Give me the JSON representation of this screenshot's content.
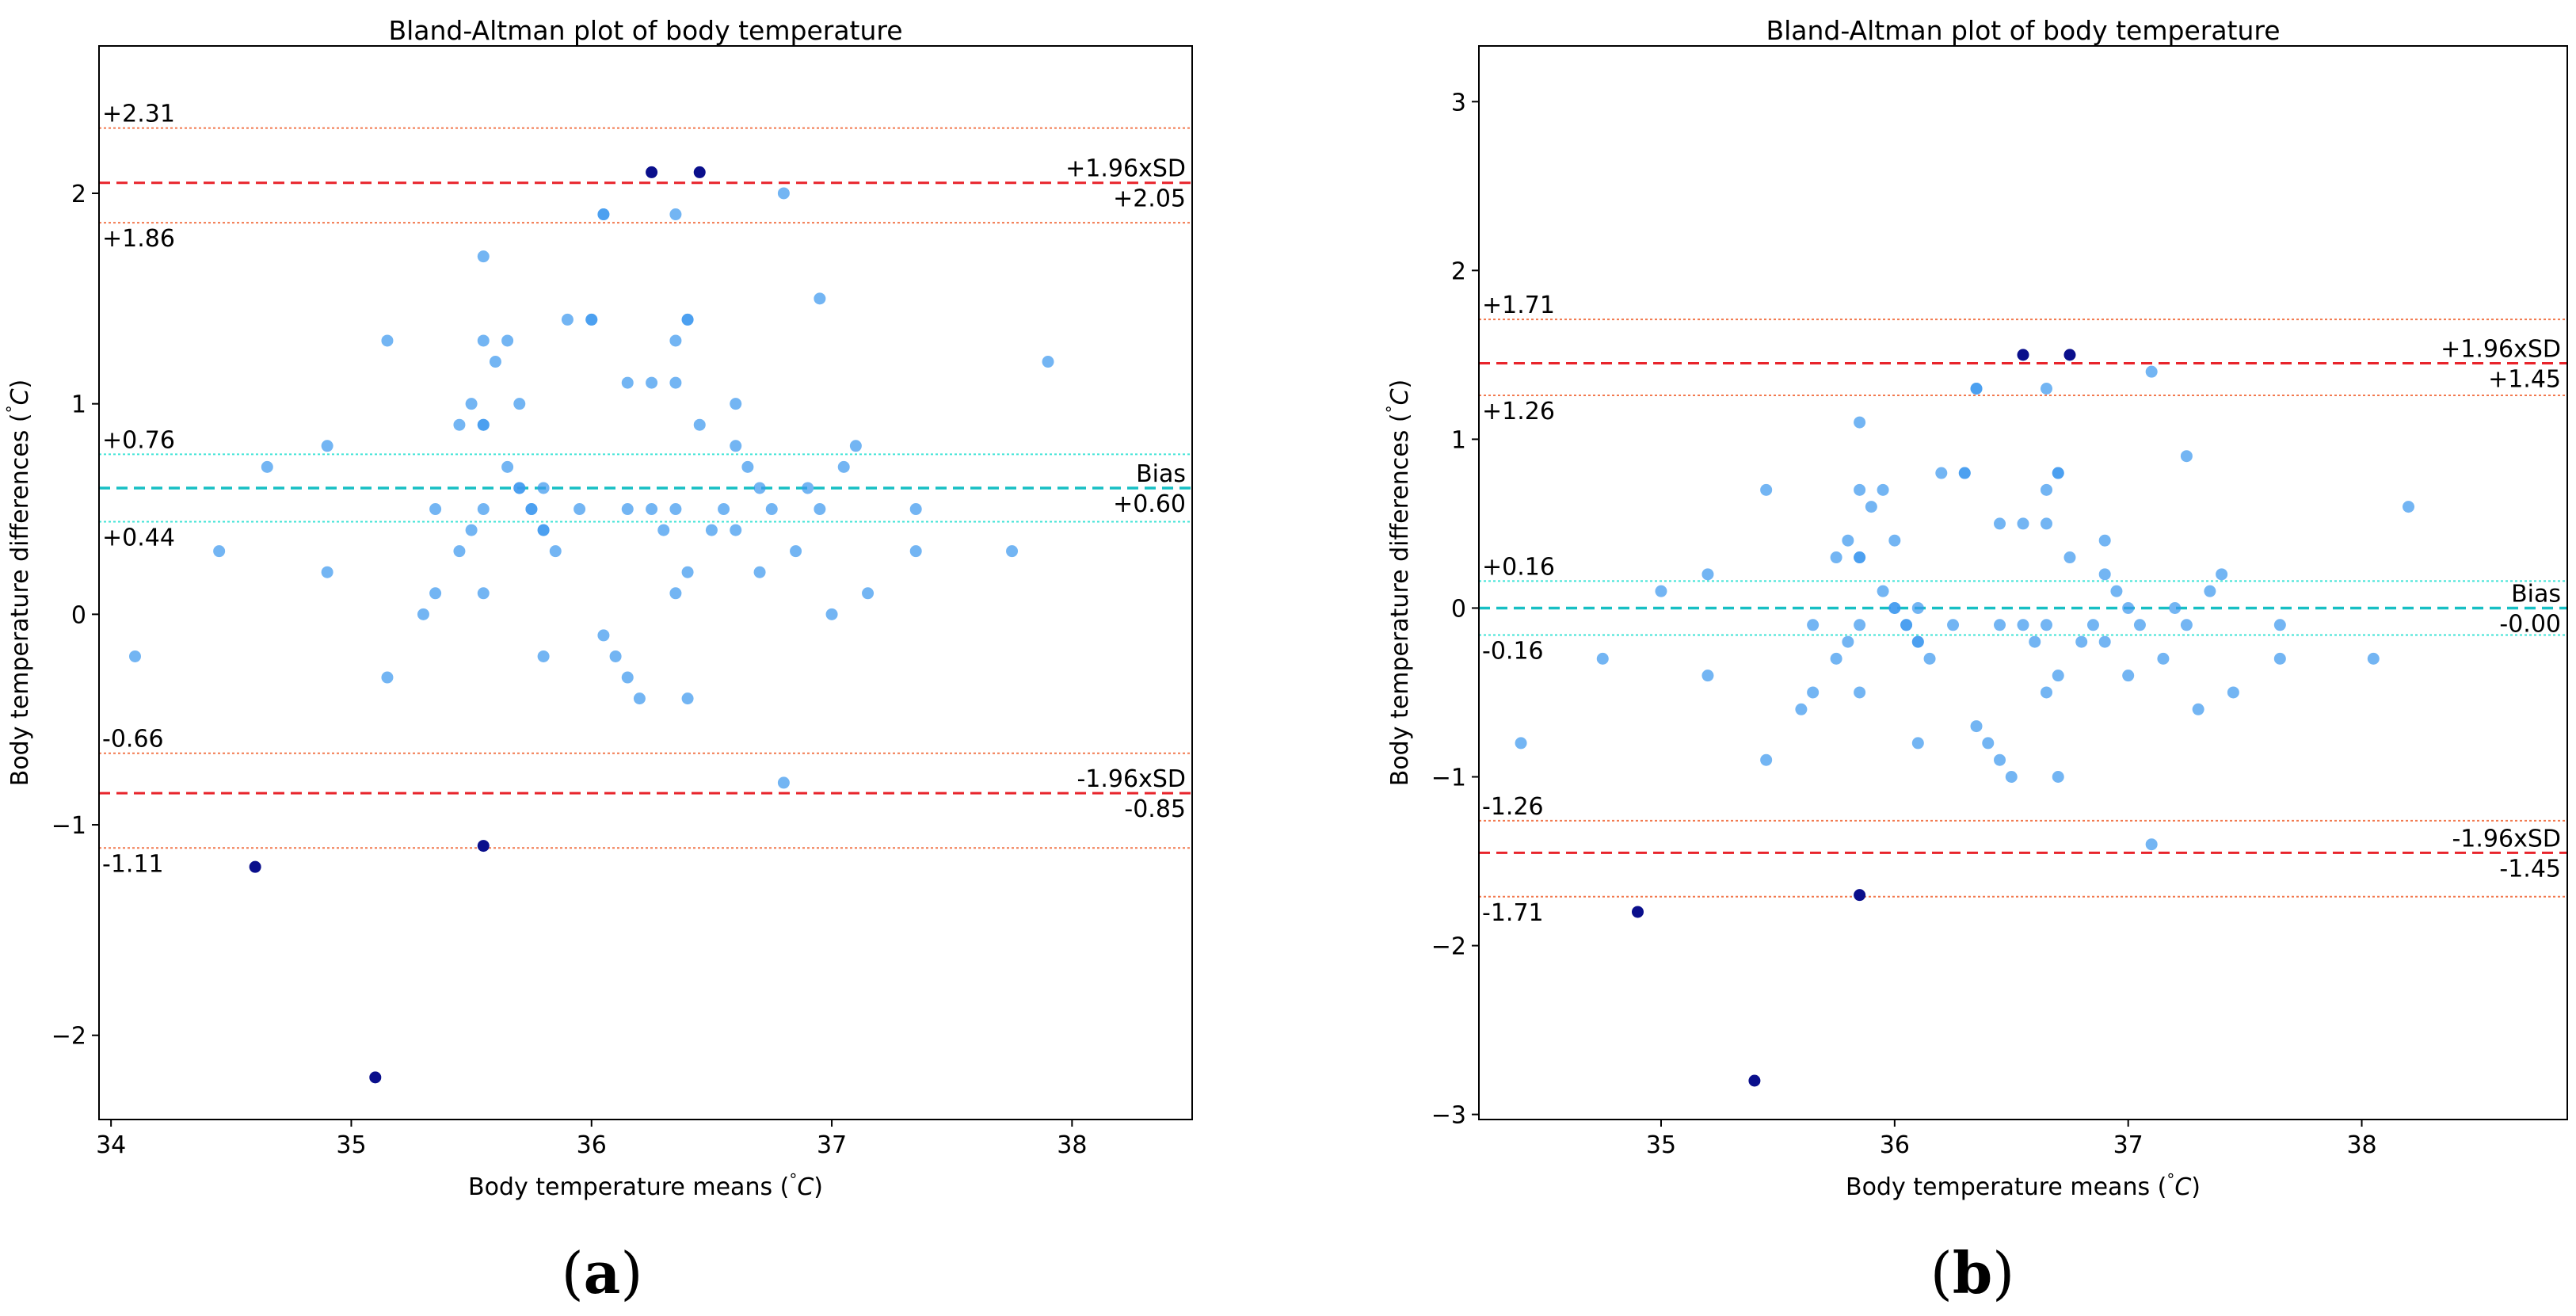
{
  "chart_data": [
    {
      "type": "scatter",
      "title": "Bland-Altman plot of body temperature",
      "xlabel": "Body temperature means (°C)",
      "ylabel": "Body temperature differences (°C)",
      "xlabel_parts": [
        "Body temperature means (",
        "°",
        "C",
        ")"
      ],
      "ylabel_parts": [
        "Body temperature differences (",
        "°",
        "C",
        ")"
      ],
      "xlim": [
        33.95,
        38.5
      ],
      "ylim": [
        -2.4,
        2.7
      ],
      "xticks": [
        34,
        35,
        36,
        37,
        38
      ],
      "yticks": [
        -2,
        -1,
        0,
        1,
        2
      ],
      "xtick_labels": [
        "34",
        "35",
        "36",
        "37",
        "38"
      ],
      "ytick_labels": [
        "−2",
        "−1",
        "0",
        "1",
        "2"
      ],
      "panel_label": {
        "open": "(",
        "letter": "a",
        "close": ")"
      },
      "reference_lines": [
        {
          "y": 2.31,
          "kind": "ci",
          "label": "+2.31",
          "label_side": "left-above"
        },
        {
          "y": 2.05,
          "kind": "loa",
          "label": "+1.96xSD",
          "label_side": "right-above"
        },
        {
          "y": 1.86,
          "kind": "ci",
          "label": "+1.86",
          "label_side": "left-below"
        },
        {
          "y": 0.76,
          "kind": "bias_ci",
          "label": "+0.76",
          "label_side": "left-above"
        },
        {
          "y": 0.6,
          "kind": "bias",
          "label": "Bias",
          "label_side": "right-above"
        },
        {
          "y": 0.44,
          "kind": "bias_ci",
          "label": "+0.44",
          "label_side": "left-below"
        },
        {
          "y": -0.66,
          "kind": "ci",
          "label": "-0.66",
          "label_side": "left-above"
        },
        {
          "y": -0.85,
          "kind": "loa",
          "label": "-1.96xSD",
          "label_side": "right-above"
        },
        {
          "y": -1.11,
          "kind": "ci",
          "label": "-1.11",
          "label_side": "left-below"
        }
      ],
      "value_labels": [
        {
          "y": 2.05,
          "label": "+2.05"
        },
        {
          "y": 0.6,
          "label": "+0.60"
        },
        {
          "y": -0.85,
          "label": "-0.85"
        }
      ],
      "points": [
        [
          34.1,
          -0.2
        ],
        [
          34.45,
          0.3
        ],
        [
          34.65,
          0.7
        ],
        [
          34.9,
          0.8
        ],
        [
          34.9,
          0.2
        ],
        [
          35.15,
          1.3
        ],
        [
          35.15,
          -0.3
        ],
        [
          35.3,
          0.0
        ],
        [
          35.35,
          0.5
        ],
        [
          35.35,
          0.1
        ],
        [
          35.45,
          0.9
        ],
        [
          35.45,
          0.3
        ],
        [
          35.5,
          1.0
        ],
        [
          35.5,
          0.4
        ],
        [
          35.55,
          1.7
        ],
        [
          35.55,
          1.3
        ],
        [
          35.55,
          0.9
        ],
        [
          35.55,
          0.9
        ],
        [
          35.55,
          0.5
        ],
        [
          35.55,
          0.1
        ],
        [
          35.6,
          1.2
        ],
        [
          35.65,
          1.3
        ],
        [
          35.65,
          0.7
        ],
        [
          35.7,
          1.0
        ],
        [
          35.7,
          0.6
        ],
        [
          35.7,
          0.6
        ],
        [
          35.75,
          0.5
        ],
        [
          35.75,
          0.5
        ],
        [
          35.8,
          0.6
        ],
        [
          35.8,
          0.4
        ],
        [
          35.8,
          0.4
        ],
        [
          35.8,
          -0.2
        ],
        [
          35.85,
          0.3
        ],
        [
          35.9,
          1.4
        ],
        [
          35.95,
          0.5
        ],
        [
          36.0,
          1.4
        ],
        [
          36.0,
          1.4
        ],
        [
          36.05,
          1.9
        ],
        [
          36.05,
          1.9
        ],
        [
          36.05,
          -0.1
        ],
        [
          36.1,
          -0.2
        ],
        [
          36.15,
          1.1
        ],
        [
          36.15,
          0.5
        ],
        [
          36.15,
          -0.3
        ],
        [
          36.2,
          -0.4
        ],
        [
          36.25,
          1.1
        ],
        [
          36.25,
          0.5
        ],
        [
          36.3,
          0.4
        ],
        [
          36.35,
          1.9
        ],
        [
          36.35,
          1.3
        ],
        [
          36.35,
          1.1
        ],
        [
          36.35,
          0.5
        ],
        [
          36.35,
          0.1
        ],
        [
          36.4,
          1.4
        ],
        [
          36.4,
          1.4
        ],
        [
          36.4,
          0.2
        ],
        [
          36.4,
          -0.4
        ],
        [
          36.45,
          0.9
        ],
        [
          36.5,
          0.4
        ],
        [
          36.55,
          0.5
        ],
        [
          36.6,
          1.0
        ],
        [
          36.6,
          0.8
        ],
        [
          36.6,
          0.4
        ],
        [
          36.65,
          0.7
        ],
        [
          36.7,
          0.6
        ],
        [
          36.7,
          0.2
        ],
        [
          36.75,
          0.5
        ],
        [
          36.8,
          2.0
        ],
        [
          36.8,
          -0.8
        ],
        [
          36.85,
          0.3
        ],
        [
          36.9,
          0.6
        ],
        [
          36.95,
          1.5
        ],
        [
          36.95,
          0.5
        ],
        [
          37.0,
          0.0
        ],
        [
          37.05,
          0.7
        ],
        [
          37.1,
          0.8
        ],
        [
          37.15,
          0.1
        ],
        [
          37.35,
          0.5
        ],
        [
          37.35,
          0.3
        ],
        [
          37.75,
          0.3
        ],
        [
          37.9,
          1.2
        ]
      ],
      "outliers": [
        [
          36.25,
          2.1
        ],
        [
          36.45,
          2.1
        ],
        [
          34.6,
          -1.2
        ],
        [
          35.55,
          -1.1
        ],
        [
          35.1,
          -2.2
        ]
      ]
    },
    {
      "type": "scatter",
      "title": "Bland-Altman plot of body temperature",
      "xlabel": "Body temperature means (°C)",
      "ylabel": "Body temperature differences (°C)",
      "xlabel_parts": [
        "Body temperature means (",
        "°",
        "C",
        ")"
      ],
      "ylabel_parts": [
        "Body temperature differences (",
        "°",
        "C",
        ")"
      ],
      "xlim": [
        34.22,
        38.88
      ],
      "ylim": [
        -3.03,
        3.33
      ],
      "xticks": [
        35,
        36,
        37,
        38
      ],
      "yticks": [
        -3,
        -2,
        -1,
        0,
        1,
        2,
        3
      ],
      "xtick_labels": [
        "35",
        "36",
        "37",
        "38"
      ],
      "ytick_labels": [
        "−3",
        "−2",
        "−1",
        "0",
        "1",
        "2",
        "3"
      ],
      "panel_label": {
        "open": "(",
        "letter": "b",
        "close": ")"
      },
      "reference_lines": [
        {
          "y": 1.71,
          "kind": "ci",
          "label": "+1.71",
          "label_side": "left-above"
        },
        {
          "y": 1.45,
          "kind": "loa",
          "label": "+1.96xSD",
          "label_side": "right-above"
        },
        {
          "y": 1.26,
          "kind": "ci",
          "label": "+1.26",
          "label_side": "left-below"
        },
        {
          "y": 0.16,
          "kind": "bias_ci",
          "label": "+0.16",
          "label_side": "left-above"
        },
        {
          "y": 0.0,
          "kind": "bias",
          "label": "Bias",
          "label_side": "right-above"
        },
        {
          "y": -0.16,
          "kind": "bias_ci",
          "label": "-0.16",
          "label_side": "left-below"
        },
        {
          "y": -1.26,
          "kind": "ci",
          "label": "-1.26",
          "label_side": "left-above"
        },
        {
          "y": -1.45,
          "kind": "loa",
          "label": "-1.96xSD",
          "label_side": "right-above"
        },
        {
          "y": -1.71,
          "kind": "ci",
          "label": "-1.71",
          "label_side": "left-below"
        }
      ],
      "value_labels": [
        {
          "y": 1.45,
          "label": "+1.45"
        },
        {
          "y": 0.0,
          "label": "-0.00"
        },
        {
          "y": -1.45,
          "label": "-1.45"
        }
      ],
      "points": [
        [
          34.4,
          -0.8
        ],
        [
          34.75,
          -0.3
        ],
        [
          35.0,
          0.1
        ],
        [
          35.2,
          0.2
        ],
        [
          35.2,
          -0.4
        ],
        [
          35.45,
          0.7
        ],
        [
          35.45,
          -0.9
        ],
        [
          35.6,
          -0.6
        ],
        [
          35.65,
          -0.1
        ],
        [
          35.65,
          -0.5
        ],
        [
          35.75,
          0.3
        ],
        [
          35.75,
          -0.3
        ],
        [
          35.8,
          0.4
        ],
        [
          35.8,
          -0.2
        ],
        [
          35.85,
          1.1
        ],
        [
          35.85,
          0.7
        ],
        [
          35.85,
          0.3
        ],
        [
          35.85,
          0.3
        ],
        [
          35.85,
          -0.1
        ],
        [
          35.85,
          -0.5
        ],
        [
          35.9,
          0.6
        ],
        [
          35.95,
          0.7
        ],
        [
          35.95,
          0.1
        ],
        [
          36.0,
          0.4
        ],
        [
          36.0,
          0.0
        ],
        [
          36.0,
          0.0
        ],
        [
          36.05,
          -0.1
        ],
        [
          36.05,
          -0.1
        ],
        [
          36.1,
          0.0
        ],
        [
          36.1,
          -0.2
        ],
        [
          36.1,
          -0.2
        ],
        [
          36.1,
          -0.8
        ],
        [
          36.15,
          -0.3
        ],
        [
          36.2,
          0.8
        ],
        [
          36.25,
          -0.1
        ],
        [
          36.3,
          0.8
        ],
        [
          36.3,
          0.8
        ],
        [
          36.35,
          1.3
        ],
        [
          36.35,
          1.3
        ],
        [
          36.35,
          -0.7
        ],
        [
          36.4,
          -0.8
        ],
        [
          36.45,
          0.5
        ],
        [
          36.45,
          -0.1
        ],
        [
          36.45,
          -0.9
        ],
        [
          36.5,
          -1.0
        ],
        [
          36.55,
          0.5
        ],
        [
          36.55,
          -0.1
        ],
        [
          36.6,
          -0.2
        ],
        [
          36.65,
          1.3
        ],
        [
          36.65,
          0.7
        ],
        [
          36.65,
          0.5
        ],
        [
          36.65,
          -0.1
        ],
        [
          36.65,
          -0.5
        ],
        [
          36.7,
          0.8
        ],
        [
          36.7,
          0.8
        ],
        [
          36.7,
          -0.4
        ],
        [
          36.7,
          -1.0
        ],
        [
          36.75,
          0.3
        ],
        [
          36.8,
          -0.2
        ],
        [
          36.85,
          -0.1
        ],
        [
          36.9,
          0.4
        ],
        [
          36.9,
          0.2
        ],
        [
          36.9,
          -0.2
        ],
        [
          36.95,
          0.1
        ],
        [
          37.0,
          0.0
        ],
        [
          37.0,
          -0.4
        ],
        [
          37.05,
          -0.1
        ],
        [
          37.1,
          1.4
        ],
        [
          37.1,
          -1.4
        ],
        [
          37.15,
          -0.3
        ],
        [
          37.2,
          0.0
        ],
        [
          37.25,
          0.9
        ],
        [
          37.25,
          -0.1
        ],
        [
          37.3,
          -0.6
        ],
        [
          37.35,
          0.1
        ],
        [
          37.4,
          0.2
        ],
        [
          37.45,
          -0.5
        ],
        [
          37.65,
          -0.1
        ],
        [
          37.65,
          -0.3
        ],
        [
          38.05,
          -0.3
        ],
        [
          38.2,
          0.6
        ]
      ],
      "outliers": [
        [
          36.55,
          1.5
        ],
        [
          36.75,
          1.5
        ],
        [
          34.9,
          -1.8
        ],
        [
          35.85,
          -1.7
        ],
        [
          35.4,
          -2.8
        ]
      ]
    }
  ],
  "colors": {
    "point": "#3d99ee",
    "outlier": "#0a0f8c",
    "loa_line": "#e8242b",
    "ci_line": "#f2794f",
    "bias_line": "#17bfc4",
    "bias_ci_line": "#3fe3d6",
    "axis": "#000000"
  }
}
